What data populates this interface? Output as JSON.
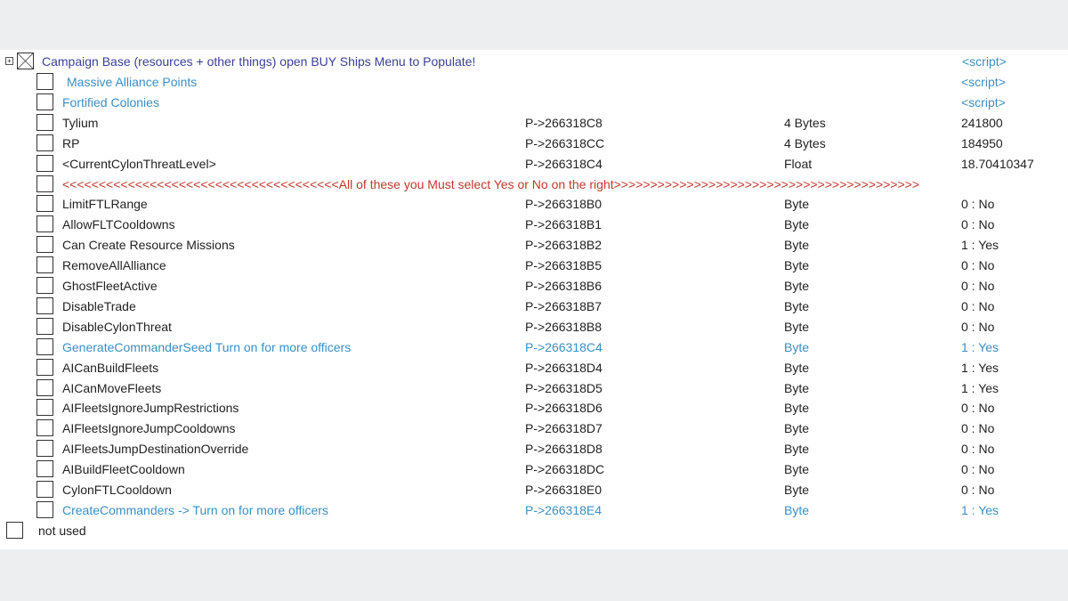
{
  "header": {
    "label": "Campaign Base (resources + other things) open BUY Ships Menu to Populate!",
    "value": "<script>"
  },
  "rows": [
    {
      "desc": "Massive Alliance Points",
      "address": "",
      "type": "",
      "value": "<script>",
      "style": "blue"
    },
    {
      "desc": "Fortified Colonies",
      "address": "",
      "type": "",
      "value": "<script>",
      "style": "blue"
    },
    {
      "desc": "Tylium",
      "address": "P->266318C8",
      "type": "4 Bytes",
      "value": "241800",
      "style": ""
    },
    {
      "desc": "RP",
      "address": "P->266318CC",
      "type": "4 Bytes",
      "value": "184950",
      "style": ""
    },
    {
      "desc": "<CurrentCylonThreatLevel>",
      "address": "P->266318C4",
      "type": "Float",
      "value": "18.70410347",
      "style": ""
    },
    {
      "desc": "<<<<<<<<<<<<<<<<<<<<<<<<<<<<<<<<<<<<<<All of these you Must select Yes or No on the right>>>>>>>>>>>>>>>>>>>>>>>>>>>>>>>>>>>>>>>>>>",
      "address": "",
      "type": "",
      "value": "",
      "style": "red"
    },
    {
      "desc": "LimitFTLRange",
      "address": "P->266318B0",
      "type": "Byte",
      "value": "0 : No",
      "style": ""
    },
    {
      "desc": "AllowFLTCooldowns",
      "address": "P->266318B1",
      "type": "Byte",
      "value": "0 : No",
      "style": ""
    },
    {
      "desc": "Can Create Resource Missions",
      "address": "P->266318B2",
      "type": "Byte",
      "value": "1 : Yes",
      "style": ""
    },
    {
      "desc": "RemoveAllAlliance",
      "address": "P->266318B5",
      "type": "Byte",
      "value": "0 : No",
      "style": ""
    },
    {
      "desc": "GhostFleetActive",
      "address": "P->266318B6",
      "type": "Byte",
      "value": "0 : No",
      "style": ""
    },
    {
      "desc": "DisableTrade",
      "address": "P->266318B7",
      "type": "Byte",
      "value": "0 : No",
      "style": ""
    },
    {
      "desc": "DisableCylonThreat",
      "address": "P->266318B8",
      "type": "Byte",
      "value": "0 : No",
      "style": ""
    },
    {
      "desc": "GenerateCommanderSeed Turn on for more officers",
      "address": "P->266318C4",
      "type": "Byte",
      "value": "1 : Yes",
      "style": "blue"
    },
    {
      "desc": "AICanBuildFleets",
      "address": "P->266318D4",
      "type": "Byte",
      "value": "1 : Yes",
      "style": ""
    },
    {
      "desc": "AICanMoveFleets",
      "address": "P->266318D5",
      "type": "Byte",
      "value": "1 : Yes",
      "style": ""
    },
    {
      "desc": "AIFleetsIgnoreJumpRestrictions",
      "address": "P->266318D6",
      "type": "Byte",
      "value": "0 : No",
      "style": ""
    },
    {
      "desc": "AIFleetsIgnoreJumpCooldowns",
      "address": "P->266318D7",
      "type": "Byte",
      "value": "0 : No",
      "style": ""
    },
    {
      "desc": "AIFleetsJumpDestinationOverride",
      "address": "P->266318D8",
      "type": "Byte",
      "value": "0 : No",
      "style": ""
    },
    {
      "desc": "AIBuildFleetCooldown",
      "address": "P->266318DC",
      "type": "Byte",
      "value": "0 : No",
      "style": ""
    },
    {
      "desc": "CylonFTLCooldown",
      "address": "P->266318E0",
      "type": "Byte",
      "value": "0 : No",
      "style": ""
    },
    {
      "desc": "CreateCommanders -> Turn on for more officers",
      "address": "P->266318E4",
      "type": "Byte",
      "value": "1 : Yes",
      "style": "blue"
    }
  ],
  "footer": {
    "label": "not used"
  }
}
